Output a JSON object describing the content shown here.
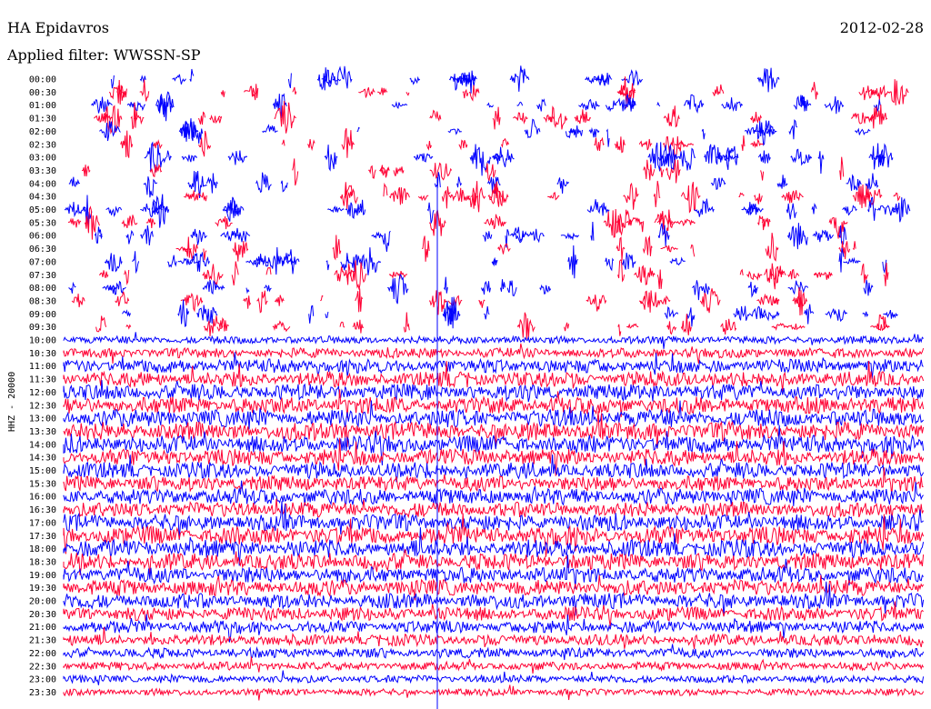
{
  "header": {
    "station": "HA Epidavros",
    "filter": "Applied filter: WWSSN-SP",
    "date": "2012-02-28"
  },
  "colors": {
    "trace_a": "#0000ff",
    "trace_b": "#ff0033",
    "background": "#ffffff"
  },
  "chart_data": {
    "type": "line",
    "title": "HA Epidavros",
    "subtitle": "Applied filter: WWSSN-SP",
    "date": "2012-02-28",
    "ylabel": "HHZ - 20000",
    "xlabel": "",
    "categories": [
      "00:00",
      "00:30",
      "01:00",
      "01:30",
      "02:00",
      "02:30",
      "03:00",
      "03:30",
      "04:00",
      "04:30",
      "05:00",
      "05:30",
      "06:00",
      "06:30",
      "07:00",
      "07:30",
      "08:00",
      "08:30",
      "09:00",
      "09:30",
      "10:00",
      "10:30",
      "11:00",
      "11:30",
      "12:00",
      "12:30",
      "13:00",
      "13:30",
      "14:00",
      "14:30",
      "15:00",
      "15:30",
      "16:00",
      "16:30",
      "17:00",
      "17:30",
      "18:00",
      "18:30",
      "19:00",
      "19:30",
      "20:00",
      "20:30",
      "21:00",
      "21:30",
      "22:00",
      "22:30",
      "23:00",
      "23:30"
    ],
    "series": [
      {
        "color": "#0000ff",
        "rows": [
          0,
          2,
          4,
          6,
          8,
          10,
          12,
          14,
          16,
          18,
          20,
          22,
          24,
          26,
          28,
          30,
          32,
          34,
          36,
          38,
          40,
          42,
          44,
          46
        ]
      },
      {
        "color": "#ff0033",
        "rows": [
          1,
          3,
          5,
          7,
          9,
          11,
          13,
          15,
          17,
          19,
          21,
          23,
          25,
          27,
          29,
          31,
          33,
          35,
          37,
          39,
          41,
          43,
          45,
          47
        ]
      }
    ],
    "activity_level": [
      0.12,
      0.12,
      0.12,
      0.12,
      0.12,
      0.12,
      0.12,
      0.12,
      0.12,
      0.12,
      0.12,
      0.12,
      0.12,
      0.12,
      0.12,
      0.12,
      0.12,
      0.12,
      0.12,
      0.12,
      0.3,
      0.45,
      0.7,
      0.8,
      0.85,
      0.9,
      0.95,
      1.0,
      0.95,
      0.9,
      0.85,
      0.8,
      0.85,
      0.8,
      0.9,
      1.0,
      0.95,
      0.9,
      0.85,
      0.85,
      0.8,
      0.7,
      0.6,
      0.55,
      0.45,
      0.35,
      0.3,
      0.25
    ],
    "grid": false,
    "legend": "none"
  }
}
